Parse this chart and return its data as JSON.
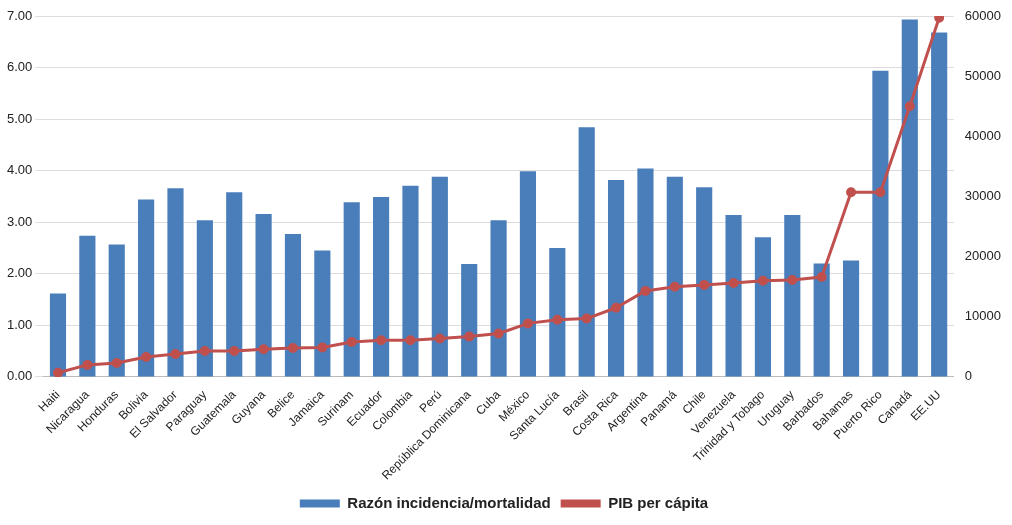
{
  "chart_data": {
    "type": "bar",
    "categories": [
      "Haiti",
      "Nicaragua",
      "Honduras",
      "Bolivia",
      "El Salvador",
      "Paraguay",
      "Guatemala",
      "Guyana",
      "Belice",
      "Jamaica",
      "Surinam",
      "Ecuador",
      "Colombia",
      "Perú",
      "República Dominicana",
      "Cuba",
      "México",
      "Santa Lucía",
      "Brasil",
      "Costa Rica",
      "Argentina",
      "Panamá",
      "Chile",
      "Venezuela",
      "Trinidad y Tobago",
      "Uruguay",
      "Barbados",
      "Bahamas",
      "Puerto Rico",
      "Canadá",
      "EE.UU"
    ],
    "series": [
      {
        "name": "Razón incidencia/mortalidad",
        "color": "#4a7ebb",
        "values": [
          1.62,
          2.74,
          2.57,
          3.44,
          3.66,
          3.04,
          3.58,
          3.16,
          2.77,
          2.45,
          3.39,
          3.49,
          3.71,
          3.88,
          2.19,
          3.04,
          3.99,
          2.5,
          4.84,
          3.82,
          4.04,
          3.88,
          3.68,
          3.14,
          2.71,
          3.14,
          2.2,
          2.26,
          5.94,
          6.93,
          6.68
        ]
      },
      {
        "name": "PIB per cápita",
        "type": "line",
        "axis": "y2",
        "color": "#c0504d",
        "marker": "circle",
        "values": [
          700,
          2000,
          2300,
          3300,
          3800,
          4300,
          4300,
          4600,
          4800,
          4900,
          5800,
          6100,
          6100,
          6400,
          6700,
          7200,
          8900,
          9500,
          9700,
          11500,
          14300,
          15000,
          15300,
          15600,
          16000,
          16100,
          16600,
          30700,
          30700,
          45000,
          59700
        ]
      }
    ],
    "ylim": [
      0,
      7
    ],
    "yticks": [
      {
        "value": 0,
        "label": "0.00"
      },
      {
        "value": 1,
        "label": "1.00"
      },
      {
        "value": 2,
        "label": "2.00"
      },
      {
        "value": 3,
        "label": "3.00"
      },
      {
        "value": 4,
        "label": "4.00"
      },
      {
        "value": 5,
        "label": "5.00"
      },
      {
        "value": 6,
        "label": "6.00"
      },
      {
        "value": 7,
        "label": "7.00"
      }
    ],
    "y2lim": [
      0,
      60000
    ],
    "y2ticks": [
      0,
      10000,
      20000,
      30000,
      40000,
      50000,
      60000
    ],
    "grid": "y",
    "legend": "bottom"
  }
}
